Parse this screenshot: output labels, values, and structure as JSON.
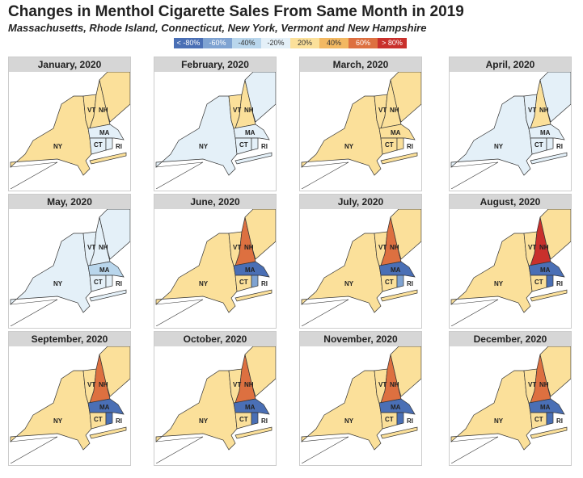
{
  "title": "Changes in Menthol Cigarette Sales From Same Month in 2019",
  "subtitle": "Massachusetts, Rhode Island, Connecticut, New York, Vermont and New Hampshire",
  "legend": [
    {
      "label": "< -80%",
      "color": "#4a6fb5"
    },
    {
      "label": "-60%",
      "color": "#7fa3d2"
    },
    {
      "label": "-40%",
      "color": "#b9d6ec"
    },
    {
      "label": "-20%",
      "color": "#e4f0f8"
    },
    {
      "label": "20%",
      "color": "#fbe09a"
    },
    {
      "label": "40%",
      "color": "#f2b862"
    },
    {
      "label": "60%",
      "color": "#dd7040"
    },
    {
      "label": "> 80%",
      "color": "#c9302c"
    }
  ],
  "state_labels": [
    "NY",
    "VT",
    "NH",
    "MA",
    "CT",
    "RI"
  ],
  "panels": [
    {
      "month": "January, 2020",
      "fill": {
        "NY": "20%",
        "VT": "20%",
        "NH": "20%",
        "ME": "20%",
        "MA": "-20%",
        "CT": "-20%",
        "RI": "-20%"
      }
    },
    {
      "month": "February, 2020",
      "fill": {
        "NY": "-20%",
        "VT": "20%",
        "NH": "20%",
        "ME": "-20%",
        "MA": "-20%",
        "CT": "-20%",
        "RI": "-20%"
      }
    },
    {
      "month": "March, 2020",
      "fill": {
        "NY": "20%",
        "VT": "20%",
        "NH": "20%",
        "ME": "20%",
        "MA": "20%",
        "CT": "20%",
        "RI": "20%"
      }
    },
    {
      "month": "April, 2020",
      "fill": {
        "NY": "-20%",
        "VT": "-20%",
        "NH": "20%",
        "ME": "-20%",
        "MA": "-20%",
        "CT": "-20%",
        "RI": "-20%"
      }
    },
    {
      "month": "May, 2020",
      "fill": {
        "NY": "-20%",
        "VT": "-20%",
        "NH": "-20%",
        "ME": "-20%",
        "MA": "-40%",
        "CT": "-20%",
        "RI": "-20%"
      }
    },
    {
      "month": "June, 2020",
      "fill": {
        "NY": "20%",
        "VT": "20%",
        "NH": "60%",
        "ME": "20%",
        "MA": "< -80%",
        "CT": "20%",
        "RI": "-60%"
      }
    },
    {
      "month": "July, 2020",
      "fill": {
        "NY": "20%",
        "VT": "20%",
        "NH": "60%",
        "ME": "20%",
        "MA": "< -80%",
        "CT": "20%",
        "RI": "-60%"
      }
    },
    {
      "month": "August, 2020",
      "fill": {
        "NY": "20%",
        "VT": "20%",
        "NH": "> 80%",
        "ME": "20%",
        "MA": "< -80%",
        "CT": "20%",
        "RI": "< -80%"
      }
    },
    {
      "month": "September, 2020",
      "fill": {
        "NY": "20%",
        "VT": "20%",
        "NH": "60%",
        "ME": "20%",
        "MA": "< -80%",
        "CT": "20%",
        "RI": "< -80%"
      }
    },
    {
      "month": "October, 2020",
      "fill": {
        "NY": "20%",
        "VT": "20%",
        "NH": "60%",
        "ME": "20%",
        "MA": "< -80%",
        "CT": "20%",
        "RI": "< -80%"
      }
    },
    {
      "month": "November, 2020",
      "fill": {
        "NY": "20%",
        "VT": "20%",
        "NH": "60%",
        "ME": "20%",
        "MA": "< -80%",
        "CT": "20%",
        "RI": "< -80%"
      }
    },
    {
      "month": "December, 2020",
      "fill": {
        "NY": "20%",
        "VT": "20%",
        "NH": "60%",
        "ME": "20%",
        "MA": "< -80%",
        "CT": "20%",
        "RI": "< -80%"
      }
    }
  ]
}
